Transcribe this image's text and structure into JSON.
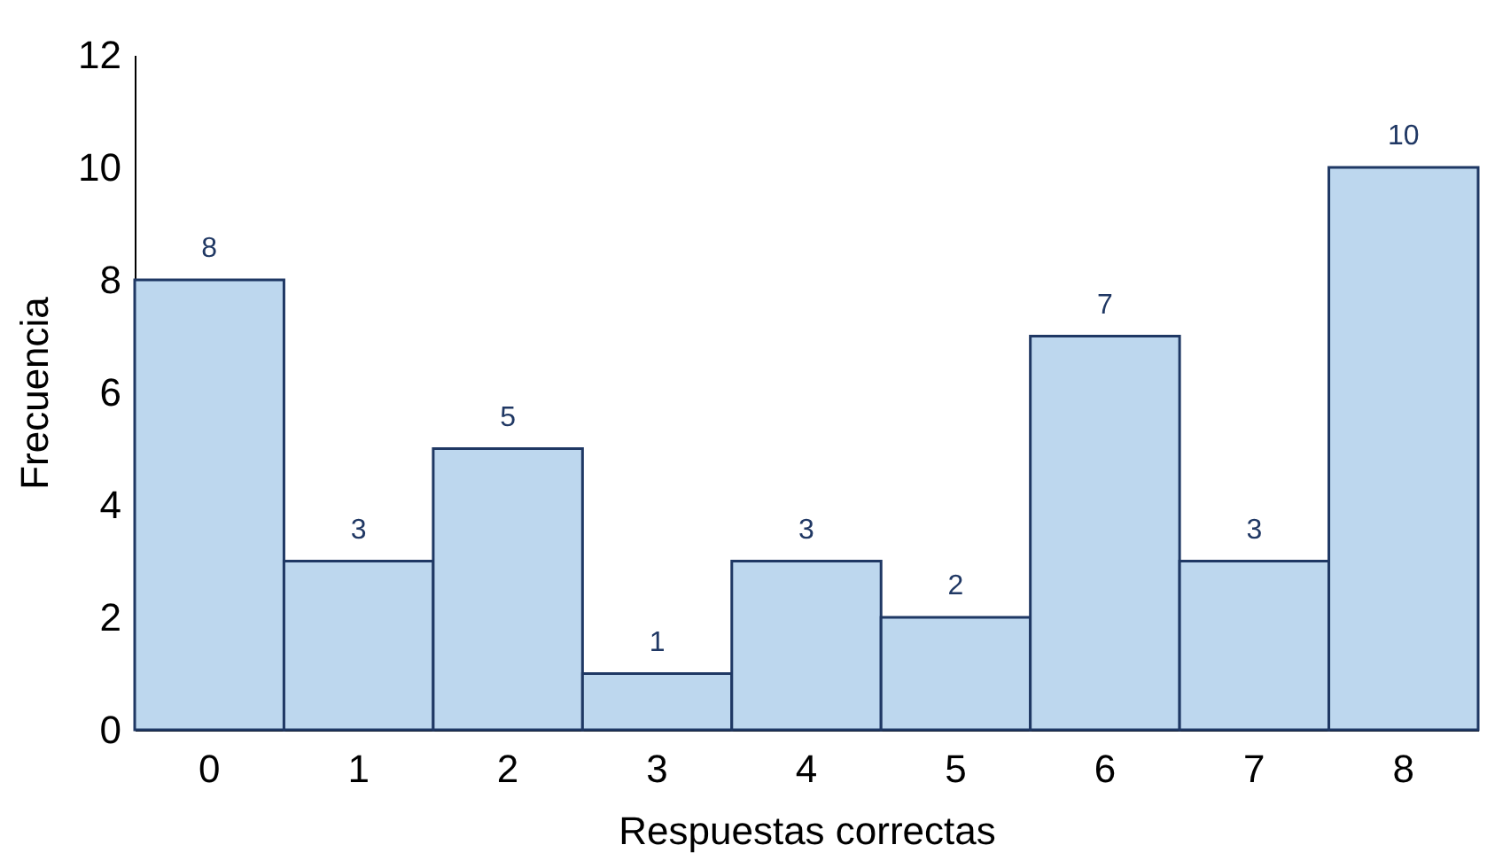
{
  "chart_data": {
    "type": "bar",
    "xlabel": "Respuestas correctas",
    "ylabel": "Frecuencia",
    "categories": [
      "0",
      "1",
      "2",
      "3",
      "4",
      "5",
      "6",
      "7",
      "8"
    ],
    "values": [
      8,
      3,
      5,
      1,
      3,
      2,
      7,
      3,
      10
    ],
    "color": "#bdd7ee",
    "ylim": [
      0,
      12
    ],
    "yticks": [
      0,
      2,
      4,
      6,
      8,
      10,
      12
    ],
    "grid": false,
    "data_labels": true
  }
}
